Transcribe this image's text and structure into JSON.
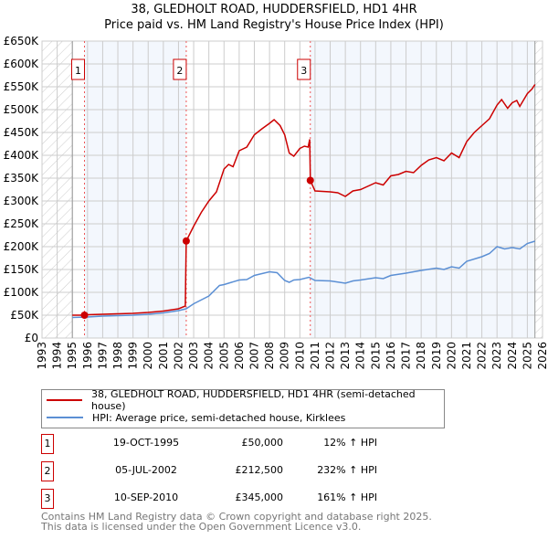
{
  "chart_data": {
    "type": "line",
    "title": "38, GLEDHOLT ROAD, HUDDERSFIELD, HD1 4HR",
    "subtitle": "Price paid vs. HM Land Registry's House Price Index (HPI)",
    "xlim": [
      1993,
      2026
    ],
    "ylim": [
      0,
      650000
    ],
    "x_ticks": [
      "1993",
      "1994",
      "1995",
      "1996",
      "1997",
      "1998",
      "1999",
      "2000",
      "2001",
      "2002",
      "2003",
      "2004",
      "2005",
      "2006",
      "2007",
      "2008",
      "2009",
      "2010",
      "2011",
      "2012",
      "2013",
      "2014",
      "2015",
      "2016",
      "2017",
      "2018",
      "2019",
      "2020",
      "2021",
      "2022",
      "2023",
      "2024",
      "2025",
      "2026"
    ],
    "y_ticks": [
      {
        "v": 0,
        "l": "£0"
      },
      {
        "v": 50000,
        "l": "£50K"
      },
      {
        "v": 100000,
        "l": "£100K"
      },
      {
        "v": 150000,
        "l": "£150K"
      },
      {
        "v": 200000,
        "l": "£200K"
      },
      {
        "v": 250000,
        "l": "£250K"
      },
      {
        "v": 300000,
        "l": "£300K"
      },
      {
        "v": 350000,
        "l": "£350K"
      },
      {
        "v": 400000,
        "l": "£400K"
      },
      {
        "v": 450000,
        "l": "£450K"
      },
      {
        "v": 500000,
        "l": "£500K"
      },
      {
        "v": 550000,
        "l": "£550K"
      },
      {
        "v": 600000,
        "l": "£600K"
      },
      {
        "v": 650000,
        "l": "£650K"
      }
    ],
    "grid": true,
    "hatched_before": 1995,
    "hatched_after": 2025.5,
    "series": [
      {
        "name": "38, GLEDHOLT ROAD, HUDDERSFIELD, HD1 4HR (semi-detached house)",
        "color": "#cc0000",
        "x": [
          1995,
          1995.8,
          1996,
          1997,
          1998,
          1999,
          2000,
          2001,
          2002,
          2002.45,
          2002.51,
          2003,
          2003.5,
          2004,
          2004.5,
          2005,
          2005.3,
          2005.6,
          2006,
          2006.5,
          2007,
          2007.5,
          2008,
          2008.3,
          2008.7,
          2009,
          2009.3,
          2009.6,
          2010,
          2010.3,
          2010.55,
          2010.65,
          2010.69,
          2011,
          2012,
          2012.5,
          2013,
          2013.5,
          2014,
          2015,
          2015.5,
          2016,
          2016.5,
          2017,
          2017.5,
          2018,
          2018.5,
          2019,
          2019.5,
          2020,
          2020.5,
          2021,
          2021.5,
          2022,
          2022.5,
          2023,
          2023.3,
          2023.7,
          2024,
          2024.3,
          2024.5,
          2025,
          2025.3,
          2025.5
        ],
        "y": [
          50000,
          50000,
          51000,
          52000,
          53000,
          54000,
          56000,
          59000,
          64000,
          70000,
          212500,
          245000,
          275000,
          300000,
          320000,
          370000,
          380000,
          375000,
          410000,
          418000,
          445000,
          458000,
          470000,
          478000,
          465000,
          445000,
          405000,
          398000,
          415000,
          420000,
          418000,
          435000,
          345000,
          322000,
          320000,
          318000,
          310000,
          322000,
          325000,
          340000,
          335000,
          355000,
          358000,
          365000,
          362000,
          378000,
          390000,
          395000,
          388000,
          405000,
          395000,
          430000,
          450000,
          465000,
          480000,
          510000,
          522000,
          503000,
          515000,
          520000,
          507000,
          535000,
          545000,
          555000
        ]
      },
      {
        "name": "HPI: Average price, semi-detached house, Kirklees",
        "color": "#5b8fd4",
        "x": [
          1995,
          1996,
          1997,
          1998,
          1999,
          2000,
          2001,
          2002,
          2002.5,
          2003,
          2004,
          2004.7,
          2005,
          2006,
          2006.5,
          2007,
          2008,
          2008.5,
          2009,
          2009.3,
          2009.6,
          2010,
          2010.6,
          2011,
          2012,
          2013,
          2013.5,
          2014,
          2015,
          2015.5,
          2016,
          2017,
          2018,
          2019,
          2019.5,
          2020,
          2020.5,
          2021,
          2022,
          2022.5,
          2023,
          2023.5,
          2024,
          2024.5,
          2025,
          2025.5
        ],
        "y": [
          45000,
          46000,
          48000,
          49000,
          50000,
          52000,
          55000,
          60000,
          64000,
          75000,
          92000,
          115000,
          117000,
          127000,
          128000,
          137000,
          145000,
          143000,
          126000,
          122000,
          127000,
          128000,
          133000,
          126000,
          125000,
          120000,
          125000,
          127000,
          132000,
          130000,
          137000,
          142000,
          148000,
          153000,
          150000,
          156000,
          153000,
          168000,
          178000,
          185000,
          200000,
          195000,
          198000,
          195000,
          207000,
          212000
        ]
      }
    ],
    "sales": [
      {
        "n": "1",
        "x": 1995.8,
        "y": 50000,
        "date": "19-OCT-1995",
        "price": "£50,000",
        "hpi": "12% ↑ HPI"
      },
      {
        "n": "2",
        "x": 2002.51,
        "y": 212500,
        "date": "05-JUL-2002",
        "price": "£212,500",
        "hpi": "232% ↑ HPI"
      },
      {
        "n": "3",
        "x": 2010.69,
        "y": 345000,
        "date": "10-SEP-2010",
        "price": "£345,000",
        "hpi": "161% ↑ HPI"
      }
    ]
  },
  "footer": {
    "line1": "Contains HM Land Registry data © Crown copyright and database right 2025.",
    "line2": "This data is licensed under the Open Government Licence v3.0."
  }
}
